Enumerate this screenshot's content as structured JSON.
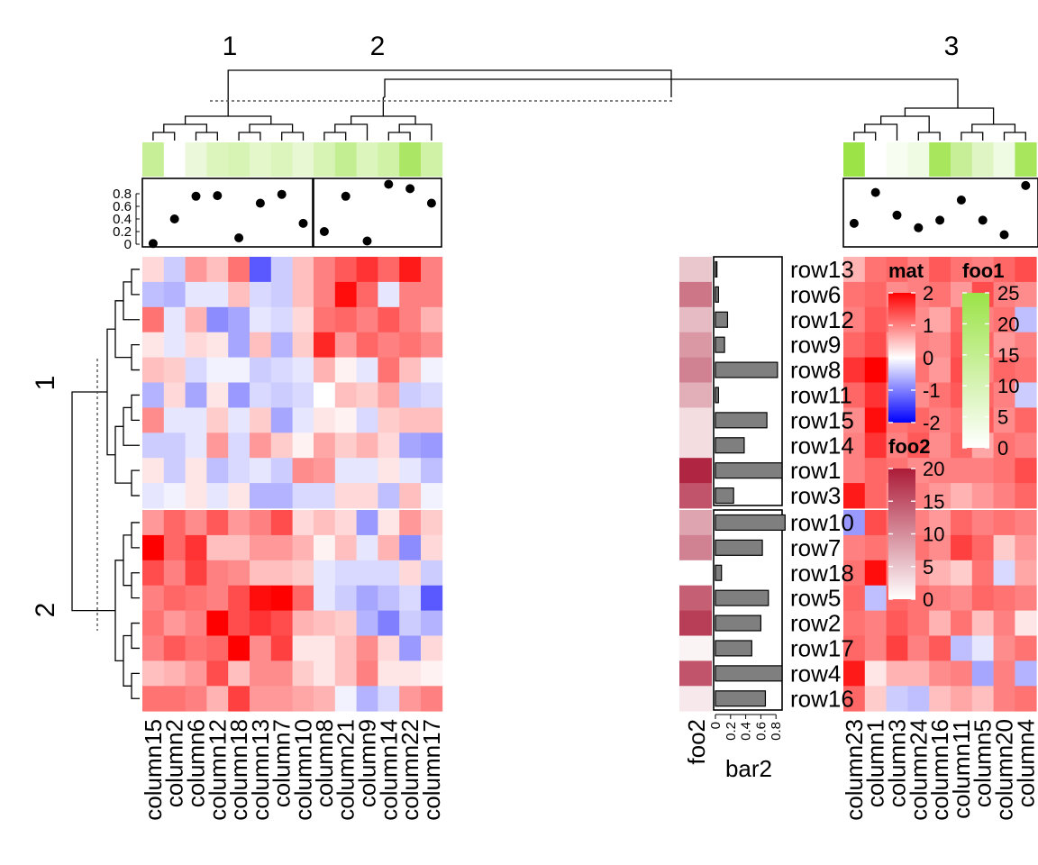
{
  "chart_data": {
    "type": "heatmap",
    "column_slices": [
      {
        "label": "1",
        "columns": [
          "column15",
          "column2",
          "column6",
          "column12",
          "column18",
          "column13",
          "column7",
          "column10"
        ]
      },
      {
        "label": "2",
        "columns": [
          "column8",
          "column21",
          "column9",
          "column14",
          "column22",
          "column17"
        ]
      },
      {
        "label": "3",
        "columns": [
          "column23",
          "column1",
          "column3",
          "column24",
          "column16",
          "column11",
          "column5",
          "column20",
          "column4"
        ]
      }
    ],
    "row_slices": [
      {
        "label": "1",
        "rows": [
          "row13",
          "row6",
          "row12",
          "row9",
          "row8",
          "row11",
          "row15",
          "row14",
          "row1",
          "row3"
        ]
      },
      {
        "label": "2",
        "rows": [
          "row10",
          "row7",
          "row18",
          "row5",
          "row2",
          "row17",
          "row4",
          "row16"
        ]
      }
    ],
    "matrix": {
      "row13": [
        0.3,
        -0.4,
        0.8,
        0.5,
        1.1,
        -1.3,
        -0.4,
        0.5,
        1.0,
        1.3,
        1.6,
        1.2,
        1.8,
        1.0,
        0.6,
        1.1,
        1.2,
        1.0,
        1.3,
        1.1,
        1.0,
        1.2,
        1.4
      ],
      "row6": [
        -0.5,
        -0.6,
        -0.2,
        -0.2,
        0.5,
        -0.3,
        -0.4,
        0.5,
        1.0,
        1.9,
        1.2,
        -0.2,
        1.0,
        1.0,
        1.1,
        1.2,
        0.9,
        1.0,
        1.1,
        0.8,
        1.4,
        1.0,
        0.9
      ],
      "row12": [
        1.1,
        -0.2,
        0.6,
        -0.9,
        -0.7,
        -0.2,
        -0.3,
        0.3,
        1.1,
        1.2,
        1.0,
        1.3,
        1.0,
        0.6,
        1.0,
        1.3,
        1.1,
        0.9,
        0.7,
        1.2,
        1.0,
        1.1,
        -0.5
      ],
      "row9": [
        0.2,
        -0.2,
        0.3,
        0.2,
        -0.7,
        0.5,
        -0.6,
        0.4,
        1.7,
        0.8,
        1.2,
        1.0,
        1.1,
        0.9,
        1.2,
        1.4,
        0.8,
        1.0,
        0.9,
        1.3,
        1.2,
        0.8,
        1.0
      ],
      "row8": [
        0.5,
        0.4,
        -0.3,
        -0.1,
        -0.1,
        -0.4,
        -0.3,
        -0.2,
        0.6,
        0.1,
        -0.2,
        1.1,
        0.5,
        -0.1,
        1.6,
        2.2,
        1.3,
        1.1,
        0.8,
        1.4,
        1.0,
        1.2,
        1.1
      ],
      "row11": [
        -0.6,
        0.3,
        -0.7,
        0.2,
        -0.8,
        -0.3,
        -0.4,
        -0.3,
        0.0,
        0.5,
        0.4,
        0.7,
        -0.4,
        -0.3,
        1.2,
        1.6,
        1.0,
        0.9,
        1.1,
        1.3,
        1.2,
        1.0,
        -0.4
      ],
      "row15": [
        0.9,
        -0.2,
        -0.2,
        0.4,
        -0.2,
        0.4,
        -0.7,
        -0.2,
        0.2,
        0.1,
        -0.3,
        0.4,
        0.5,
        0.5,
        0.9,
        1.9,
        1.1,
        1.2,
        1.0,
        1.1,
        1.3,
        0.9,
        1.2
      ],
      "row14": [
        -0.4,
        -0.4,
        -0.2,
        0.8,
        -0.3,
        0.8,
        0.4,
        0.1,
        0.7,
        0.4,
        0.6,
        0.3,
        -0.7,
        -0.8,
        1.0,
        1.6,
        1.0,
        1.3,
        0.9,
        1.2,
        0.7,
        1.1,
        1.0
      ],
      "row1": [
        0.2,
        -0.4,
        0.2,
        -0.5,
        -0.3,
        -0.2,
        -0.4,
        0.9,
        0.8,
        -0.2,
        -0.2,
        0.2,
        -0.2,
        -0.5,
        1.0,
        1.2,
        1.1,
        0.9,
        1.0,
        1.0,
        1.0,
        1.1,
        1.4
      ],
      "row3": [
        -0.2,
        -0.1,
        0.2,
        -0.2,
        0.2,
        -0.6,
        -0.6,
        -0.3,
        -0.3,
        0.3,
        0.3,
        -0.5,
        0.5,
        -0.1,
        1.8,
        1.2,
        0.9,
        1.0,
        0.8,
        0.6,
        0.8,
        1.0,
        1.2
      ],
      "row10": [
        0.8,
        1.2,
        0.9,
        1.3,
        0.8,
        1.0,
        1.4,
        0.3,
        0.5,
        0.3,
        -0.8,
        0.2,
        0.8,
        0.4,
        -0.8,
        1.4,
        1.1,
        1.0,
        0.8,
        1.2,
        1.0,
        1.1,
        1.0
      ],
      "row7": [
        2.3,
        1.2,
        1.6,
        0.5,
        0.5,
        0.8,
        0.8,
        0.6,
        0.1,
        0.5,
        -0.2,
        0.6,
        -0.9,
        0.3,
        1.0,
        1.1,
        1.0,
        1.1,
        0.9,
        1.5,
        1.2,
        0.4,
        0.8
      ],
      "row18": [
        1.4,
        1.0,
        1.5,
        1.0,
        0.9,
        0.5,
        0.5,
        0.4,
        -0.2,
        -0.3,
        -0.3,
        -0.3,
        0.3,
        -0.4,
        1.1,
        1.9,
        1.0,
        0.8,
        0.6,
        0.4,
        1.1,
        -0.3,
        0.7
      ],
      "row5": [
        1.0,
        1.2,
        1.1,
        1.0,
        1.4,
        1.9,
        2.1,
        1.2,
        -0.2,
        -0.4,
        -0.7,
        -0.5,
        -0.3,
        -1.3,
        1.2,
        -0.5,
        1.2,
        1.1,
        1.0,
        0.9,
        1.2,
        1.1,
        1.0
      ],
      "row2": [
        1.1,
        0.8,
        1.0,
        2.1,
        1.4,
        1.6,
        1.4,
        0.6,
        0.5,
        0.4,
        -0.6,
        -1.0,
        -0.4,
        -0.6,
        1.1,
        1.0,
        1.3,
        1.1,
        0.6,
        1.1,
        0.5,
        1.0,
        0.2
      ],
      "row17": [
        1.0,
        1.3,
        1.1,
        1.2,
        2.1,
        0.9,
        1.5,
        0.2,
        0.2,
        0.5,
        0.9,
        0.3,
        -0.8,
        0.3,
        1.2,
        1.0,
        1.5,
        1.0,
        1.3,
        -0.5,
        -0.2,
        0.9,
        1.1
      ],
      "row4": [
        0.5,
        0.6,
        0.8,
        1.4,
        0.5,
        0.9,
        0.9,
        0.4,
        0.2,
        0.5,
        1.0,
        0.2,
        0.2,
        0.1,
        1.8,
        0.2,
        0.6,
        0.6,
        0.9,
        1.0,
        -0.7,
        1.0,
        -0.6
      ],
      "row16": [
        1.1,
        1.1,
        1.0,
        0.6,
        1.5,
        0.8,
        0.8,
        0.7,
        0.6,
        -0.1,
        -0.6,
        -0.3,
        0.8,
        1.0,
        1.2,
        0.4,
        -0.4,
        -0.5,
        0.5,
        0.7,
        0.5,
        1.0,
        1.1
      ]
    },
    "foo1": [
      14,
      0,
      5,
      9,
      10,
      7,
      9,
      6,
      10,
      15,
      9,
      12,
      21,
      12,
      25,
      0,
      2,
      4,
      22,
      14,
      8,
      4,
      22
    ],
    "bar1": [
      0.01,
      0.4,
      0.76,
      0.77,
      0.1,
      0.65,
      0.79,
      0.33,
      0.2,
      0.76,
      0.05,
      0.95,
      0.88,
      0.65,
      0.33,
      0.82,
      0.46,
      0.26,
      0.38,
      0.7,
      0.38,
      0.15,
      0.93
    ],
    "foo2": [
      5,
      12,
      6,
      9,
      11,
      7,
      3,
      3,
      19,
      15,
      8,
      11,
      0,
      14,
      17,
      1,
      15,
      2
    ],
    "bar2": [
      0.02,
      0.04,
      0.16,
      0.12,
      0.82,
      0.04,
      0.68,
      0.38,
      0.88,
      0.24,
      0.92,
      0.62,
      0.08,
      0.7,
      0.6,
      0.48,
      0.88,
      0.66
    ],
    "bar1_axis": {
      "ticks": [
        0,
        0.2,
        0.4,
        0.6,
        0.8
      ],
      "labels": [
        "0",
        "0.2",
        "0.4",
        "0.6",
        "0.8"
      ],
      "ylim": [
        0,
        1
      ]
    },
    "bar2_axis": {
      "ticks": [
        0,
        0.2,
        0.4,
        0.6,
        0.8
      ],
      "labels": [
        "0",
        "0.2",
        "0.4",
        "0.6",
        "0.8"
      ],
      "xlim": [
        0,
        1
      ]
    },
    "annotation_labels": {
      "foo2": "foo2",
      "bar2": "bar2"
    },
    "legends": [
      {
        "title": "mat",
        "ticks": [
          2,
          1,
          0,
          -1,
          -2
        ],
        "labels": [
          "2",
          "1",
          "0",
          "-1",
          "-2"
        ],
        "colors": [
          "#0000ff",
          "#ffffff",
          "#ff0000"
        ],
        "range": [
          -2,
          2
        ]
      },
      {
        "title": "foo1",
        "ticks": [
          25,
          20,
          15,
          10,
          5,
          0
        ],
        "labels": [
          "25",
          "20",
          "15",
          "10",
          "5",
          "0"
        ],
        "colors": [
          "#ffffff",
          "#9be347"
        ],
        "range": [
          0,
          25
        ]
      },
      {
        "title": "foo2",
        "ticks": [
          20,
          15,
          10,
          5,
          0
        ],
        "labels": [
          "20",
          "15",
          "10",
          "5",
          "0"
        ],
        "colors": [
          "#ffffff",
          "#ac1b38"
        ],
        "range": [
          0,
          20
        ]
      }
    ]
  }
}
